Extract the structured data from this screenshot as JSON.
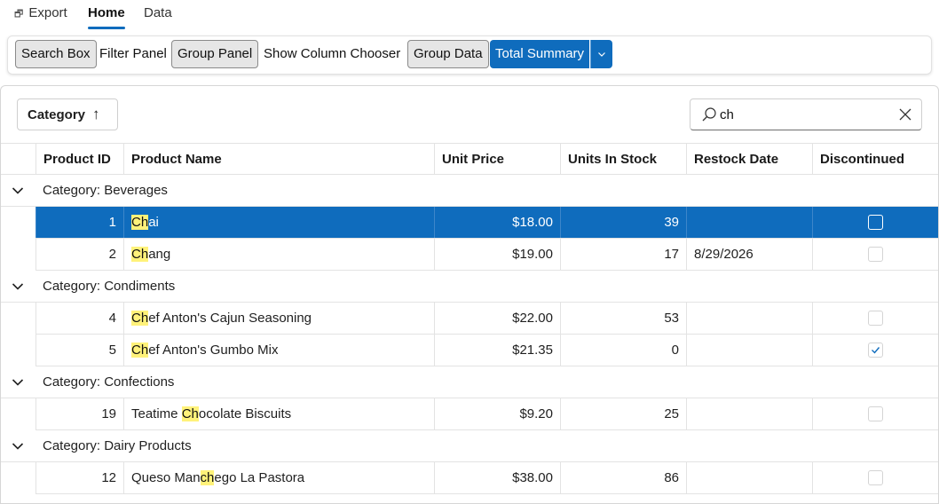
{
  "ribbon": {
    "tabs": [
      {
        "label": "Export",
        "icon": "export-icon"
      },
      {
        "label": "Home"
      },
      {
        "label": "Data"
      }
    ],
    "active_tab": "Home"
  },
  "toolbar": {
    "search_box": "Search Box",
    "filter_panel": "Filter Panel",
    "group_panel": "Group Panel",
    "show_column_chooser": "Show Column Chooser",
    "group_data": "Group Data",
    "total_summary": "Total Summary",
    "dropdown_icon": "chevron-down-icon"
  },
  "group_panel": {
    "chip_label": "Category",
    "sort": "ascending"
  },
  "search": {
    "value": "ch",
    "icon": "search-icon"
  },
  "colors": {
    "accent": "#0f6cbd",
    "highlight": "#fff27a"
  },
  "columns": [
    "Product ID",
    "Product Name",
    "Unit Price",
    "Units In Stock",
    "Restock Date",
    "Discontinued"
  ],
  "groups": [
    {
      "label": "Category: Beverages",
      "rows": [
        {
          "id": "1",
          "name_hl": "Ch",
          "name_rest": "ai",
          "price": "$18.00",
          "stock": "39",
          "restock": "",
          "discontinued": false,
          "selected": true
        },
        {
          "id": "2",
          "name_hl": "Ch",
          "name_rest": "ang",
          "price": "$19.00",
          "stock": "17",
          "restock": "8/29/2026",
          "discontinued": false
        }
      ]
    },
    {
      "label": "Category: Condiments",
      "rows": [
        {
          "id": "4",
          "name_hl": "Ch",
          "name_rest": "ef Anton's Cajun Seasoning",
          "price": "$22.00",
          "stock": "53",
          "restock": "",
          "discontinued": false
        },
        {
          "id": "5",
          "name_hl": "Ch",
          "name_rest": "ef Anton's Gumbo Mix",
          "price": "$21.35",
          "stock": "0",
          "restock": "",
          "discontinued": true
        }
      ]
    },
    {
      "label": "Category: Confections",
      "rows": [
        {
          "id": "19",
          "name_pre": "Teatime ",
          "name_hl": "Ch",
          "name_rest": "ocolate Biscuits",
          "price": "$9.20",
          "stock": "25",
          "restock": "",
          "discontinued": false
        }
      ]
    },
    {
      "label": "Category: Dairy Products",
      "rows": [
        {
          "id": "12",
          "name_pre": "Queso Man",
          "name_hl": "ch",
          "name_rest": "ego La Pastora",
          "price": "$38.00",
          "stock": "86",
          "restock": "",
          "discontinued": false
        }
      ]
    }
  ]
}
